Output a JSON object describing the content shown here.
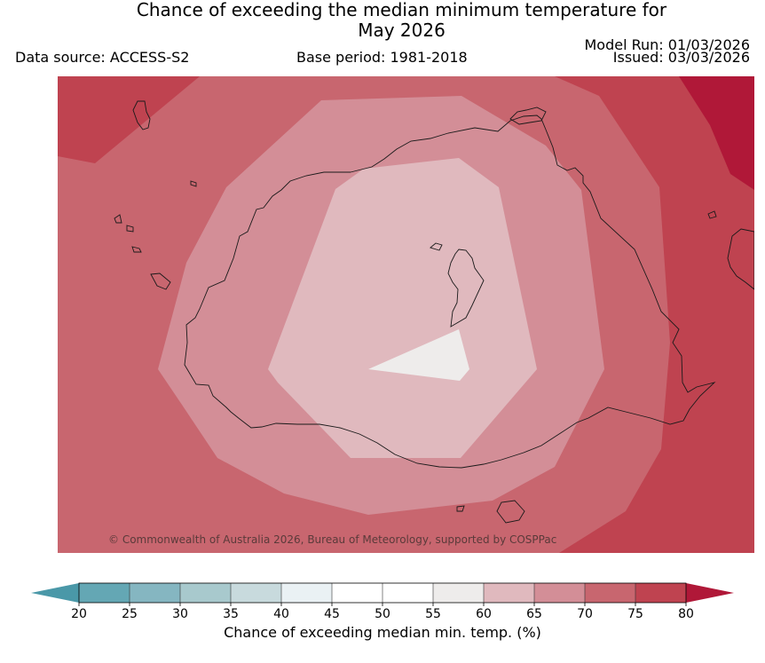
{
  "title": {
    "line1": "Chance of exceeding the median minimum temperature for",
    "line2": "May 2026"
  },
  "data_source": "Data source: ACCESS-S2",
  "base_period": "Base period: 1981-2018",
  "model_run": "Model Run: 01/03/2026",
  "issued": "Issued: 03/03/2026",
  "copyright": "© Commonwealth of Australia 2026, Bureau of Meteorology, supported by COSPPac",
  "colorbar": {
    "title": "Chance of exceeding median min. temp. (%)",
    "ticks": [
      "20",
      "25",
      "30",
      "35",
      "40",
      "45",
      "50",
      "55",
      "60",
      "65",
      "70",
      "75",
      "80"
    ],
    "colors": [
      "#64a7b4",
      "#85b6c1",
      "#a8c9cd",
      "#c8dadd",
      "#eaf1f4",
      "#ffffff",
      "#ffffff",
      "#eeeceb",
      "#e0b9be",
      "#d38e97",
      "#c8666f",
      "#bf4350"
    ],
    "under_color": "#4a98a8",
    "over_color": "#b01838"
  },
  "map_colors": {
    "c75": "#bf4350",
    "c80": "#b01838",
    "c70": "#c8666f",
    "c65": "#d38e97",
    "c60": "#e0b9be",
    "c55": "#eeeceb"
  }
}
